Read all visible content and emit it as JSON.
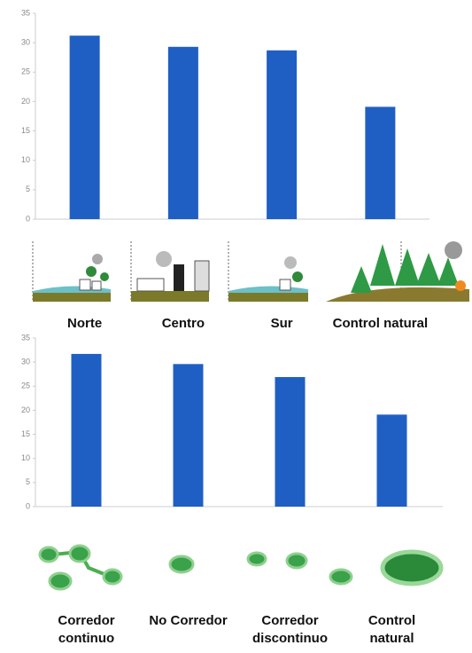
{
  "chart_data": [
    {
      "type": "bar",
      "categories": [
        "Norte",
        "Centro",
        "Sur",
        "Control natural"
      ],
      "values": [
        31.2,
        29.3,
        28.7,
        19.1
      ],
      "color": "#1f5fc4",
      "ylim": [
        0,
        35
      ],
      "yticks": [
        0,
        5,
        10,
        15,
        20,
        25,
        30,
        35
      ],
      "grid": false
    },
    {
      "type": "bar",
      "categories": [
        "Corredor continuo",
        "No Corredor",
        "Corredor discontinuo",
        "Control natural"
      ],
      "values": [
        31.7,
        29.6,
        26.9,
        19.1
      ],
      "color": "#1f5fc4",
      "ylim": [
        0,
        35
      ],
      "yticks": [
        0,
        5,
        10,
        15,
        20,
        25,
        30,
        35
      ],
      "grid": false
    }
  ]
}
